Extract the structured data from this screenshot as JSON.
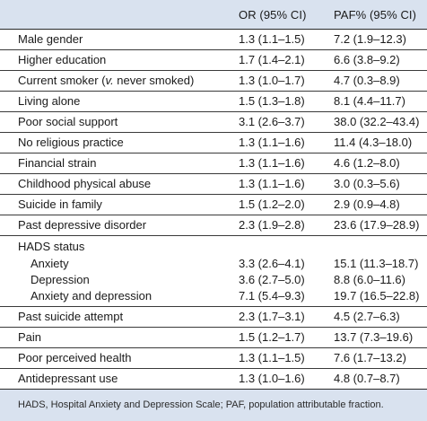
{
  "header": {
    "col_or": "OR (95% CI)",
    "col_paf": "PAF% (95% CI)"
  },
  "rows": [
    {
      "label": "Male gender",
      "or": "1.3 (1.1–1.5)",
      "paf": "7.2 (1.9–12.3)"
    },
    {
      "label": "Higher education",
      "or": "1.7 (1.4–2.1)",
      "paf": "6.6 (3.8–9.2)"
    },
    {
      "label_a": "Current smoker (",
      "label_i": "v.",
      "label_b": " never smoked)",
      "or": "1.3 (1.0–1.7)",
      "paf": "4.7 (0.3–8.9)"
    },
    {
      "label": "Living alone",
      "or": "1.5 (1.3–1.8)",
      "paf": "8.1 (4.4–11.7)"
    },
    {
      "label": "Poor social support",
      "or": "3.1 (2.6–3.7)",
      "paf": "38.0 (32.2–43.4)"
    },
    {
      "label": "No religious practice",
      "or": "1.3 (1.1–1.6)",
      "paf": "11.4 (4.3–18.0)"
    },
    {
      "label": "Financial strain",
      "or": "1.3 (1.1–1.6)",
      "paf": "4.6 (1.2–8.0)"
    },
    {
      "label": "Childhood physical abuse",
      "or": "1.3 (1.1–1.6)",
      "paf": "3.0 (0.3–5.6)"
    },
    {
      "label": "Suicide in family",
      "or": "1.5 (1.2–2.0)",
      "paf": "2.9 (0.9–4.8)"
    },
    {
      "label": "Past depressive disorder",
      "or": "2.3 (1.9–2.8)",
      "paf": "23.6 (17.9–28.9)"
    }
  ],
  "hads": {
    "label": "HADS status",
    "sub": [
      {
        "label": "Anxiety",
        "or": "3.3 (2.6–4.1)",
        "paf": "15.1 (11.3–18.7)"
      },
      {
        "label": "Depression",
        "or": "3.6 (2.7–5.0)",
        "paf": "8.8 (6.0–11.6)"
      },
      {
        "label": "Anxiety and depression",
        "or": "7.1 (5.4–9.3)",
        "paf": "19.7 (16.5–22.8)"
      }
    ]
  },
  "rows2": [
    {
      "label": "Past suicide attempt",
      "or": "2.3 (1.7–3.1)",
      "paf": "4.5 (2.7–6.3)"
    },
    {
      "label": "Pain",
      "or": "1.5 (1.2–1.7)",
      "paf": "13.7 (7.3–19.6)"
    },
    {
      "label": "Poor perceived health",
      "or": "1.3 (1.1–1.5)",
      "paf": "7.6 (1.7–13.2)"
    },
    {
      "label": "Antidepressant use",
      "or": "1.3 (1.0–1.6)",
      "paf": "4.8 (0.7–8.7)"
    }
  ],
  "footnote": "HADS, Hospital Anxiety and Depression Scale; PAF, population attributable fraction."
}
